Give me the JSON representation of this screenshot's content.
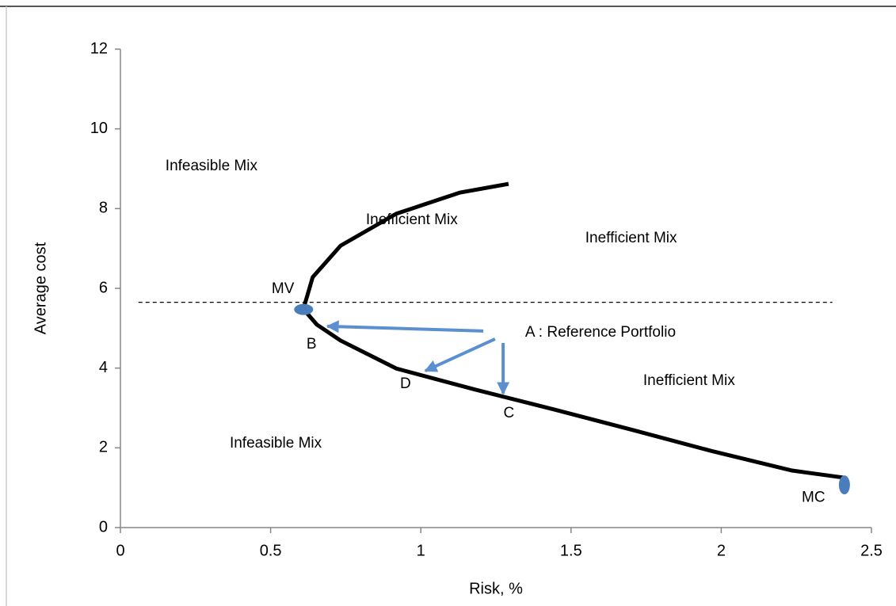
{
  "chart_data": {
    "type": "line",
    "x_label": "Risk, %",
    "y_label": "Average cost",
    "xlim": [
      0,
      2.5
    ],
    "ylim": [
      0,
      12
    ],
    "xticks": [
      0,
      0.5,
      1,
      1.5,
      2,
      2.5
    ],
    "yticks": [
      0,
      2,
      4,
      6,
      8,
      10,
      12
    ],
    "grid": false,
    "x": [
      1.292,
      1.129,
      0.918,
      0.733,
      0.64,
      0.609,
      0.654,
      0.733,
      0.918,
      1.181,
      1.445,
      1.709,
      1.973,
      2.236,
      2.41
    ],
    "series": [
      {
        "color": "#000000",
        "values": [
          8.62,
          8.4,
          7.87,
          7.07,
          6.28,
          5.48,
          5.09,
          4.69,
          3.99,
          3.46,
          2.96,
          2.44,
          1.91,
          1.43,
          1.25
        ]
      }
    ],
    "hline": {
      "y": 5.65,
      "x": [
        0.06,
        2.37
      ]
    },
    "points": [
      {
        "label": "MV",
        "x": 0.61,
        "y": 5.47,
        "label_x": 0.541,
        "label_y": 5.98
      },
      {
        "label": "MC",
        "x": 2.41,
        "y": 1.07,
        "label_x": 2.307,
        "label_y": 0.75
      }
    ],
    "marker_color": "#4a7ebb",
    "arrow_color": "#5b8fd0",
    "arrows": [
      {
        "from": [
          1.208,
          4.93
        ],
        "to": [
          0.689,
          5.05
        ]
      },
      {
        "from": [
          1.247,
          4.73
        ],
        "to": [
          1.015,
          3.93
        ]
      },
      {
        "from": [
          1.274,
          4.63
        ],
        "to": [
          1.274,
          3.36
        ]
      }
    ],
    "annotations": [
      {
        "text": "Infeasible Mix",
        "x": 0.303,
        "y": 9.06
      },
      {
        "text": "Inefficient Mix",
        "x": 0.97,
        "y": 7.71
      },
      {
        "text": "Inefficient Mix",
        "x": 1.7,
        "y": 7.25
      },
      {
        "text": "A : Reference Portfolio",
        "x": 1.598,
        "y": 4.89
      },
      {
        "text": "Inefficient Mix",
        "x": 1.893,
        "y": 3.68
      },
      {
        "text": "Infeasible Mix",
        "x": 0.517,
        "y": 2.11
      },
      {
        "text": "B",
        "x": 0.636,
        "y": 4.59
      },
      {
        "text": "D",
        "x": 0.949,
        "y": 3.6
      },
      {
        "text": "C",
        "x": 1.293,
        "y": 2.86
      }
    ]
  }
}
